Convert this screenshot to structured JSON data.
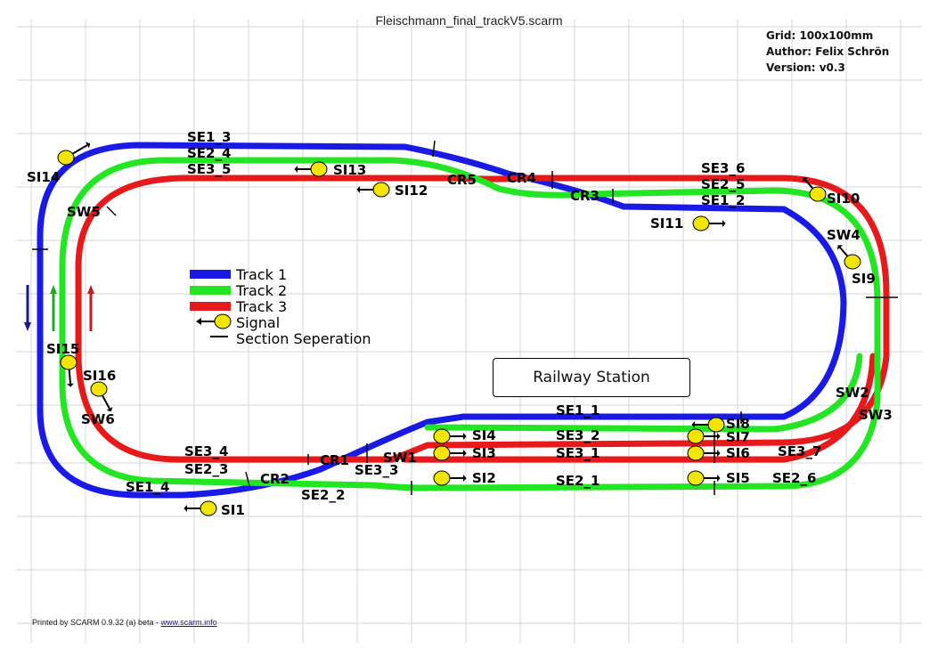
{
  "title": "Fleischmann_final_trackV5.scarm",
  "info": {
    "grid": "Grid: 100x100mm",
    "author": "Author: Felix Schrön",
    "version": "Version: v0.3"
  },
  "footer": {
    "printed_by": "Printed by SCARM 0.9.32 (a) beta - ",
    "link": "www.scarm.info"
  },
  "legend": {
    "items": [
      {
        "label": "Track 1",
        "color": "#1a1ae6"
      },
      {
        "label": "Track 2",
        "color": "#22e622"
      },
      {
        "label": "Track 3",
        "color": "#e61a1a"
      }
    ],
    "signal_label": "Signal",
    "section_label": "Section Seperation"
  },
  "station_label": "Railway Station",
  "colors": {
    "track1": "#1a1ae6",
    "track2": "#22e622",
    "track3": "#e61a1a",
    "signal": "#f2e600",
    "grid": "#d4d4d4"
  },
  "labels": {
    "se1_3": "SE1_3",
    "se2_4": "SE2_4",
    "se3_5": "SE3_5",
    "si13": "SI13",
    "si12": "SI12",
    "si14": "SI14",
    "cr5": "CR5",
    "cr4": "CR4",
    "cr3": "CR3",
    "se3_6": "SE3_6",
    "se2_5": "SE2_5",
    "se1_2": "SE1_2",
    "si10": "SI10",
    "si11": "SI11",
    "sw4": "SW4",
    "si9": "SI9",
    "sw5": "SW5",
    "si15": "SI15",
    "si16": "SI16",
    "sw6": "SW6",
    "se1_1": "SE1_1",
    "si8": "SI8",
    "si7": "SI7",
    "si6": "SI6",
    "si5": "SI5",
    "se3_2": "SE3_2",
    "se3_1": "SE3_1",
    "se2_1": "SE2_1",
    "si4": "SI4",
    "si3": "SI3",
    "si2": "SI2",
    "sw1": "SW1",
    "se3_3": "SE3_3",
    "cr1": "CR1",
    "se3_4": "SE3_4",
    "se2_3": "SE2_3",
    "cr2": "CR2",
    "se2_2": "SE2_2",
    "se1_4": "SE1_4",
    "si1": "SI1",
    "sw2": "SW2",
    "sw3": "SW3",
    "se3_7": "SE3_7",
    "se2_6": "SE2_6"
  }
}
